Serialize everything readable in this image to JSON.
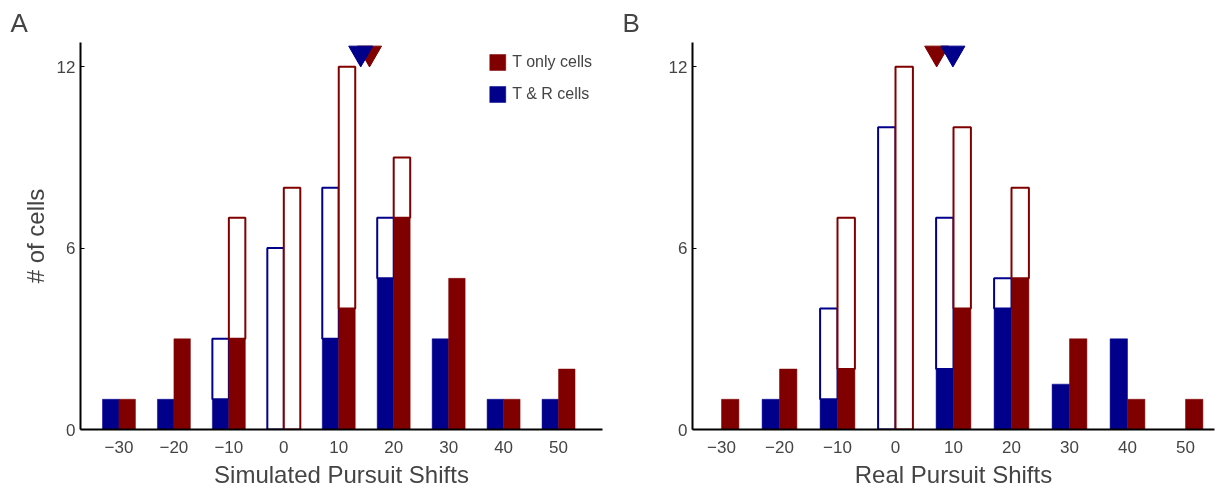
{
  "chart_data": [
    {
      "type": "bar",
      "title": "A",
      "xlabel": "Simulated Pursuit Shifts",
      "ylabel": "# of cells",
      "stacked": true,
      "xlim": [
        -37,
        58
      ],
      "xticks": [
        -30,
        -20,
        -10,
        0,
        10,
        20,
        30,
        40,
        50
      ],
      "ylim": [
        0,
        12.8
      ],
      "yticks": [
        0,
        6,
        12
      ],
      "grid": false,
      "legend": "top right",
      "x": [
        -31.5,
        -28.5,
        -21.5,
        -18.5,
        -11.5,
        -8.5,
        -1.5,
        1.5,
        8.5,
        11.5,
        18.5,
        21.5,
        28.5,
        31.5,
        38.5,
        41.5,
        48.5,
        51.5
      ],
      "series": [
        {
          "name": "T & R cells",
          "color": "#00008b",
          "values": [
            1,
            null,
            1,
            null,
            1,
            null,
            0,
            null,
            3,
            null,
            5,
            null,
            3,
            null,
            1,
            null,
            1,
            null
          ]
        },
        {
          "color": "#00008b",
          "line_style": "solid",
          "values": [
            null,
            null,
            null,
            null,
            2,
            null,
            6,
            null,
            5,
            null,
            2,
            null,
            null,
            null,
            null,
            null,
            null,
            null
          ]
        },
        {
          "name": "T only cells",
          "color": "#800000",
          "values": [
            null,
            1,
            null,
            3,
            null,
            3,
            null,
            0,
            null,
            4,
            null,
            7,
            null,
            5,
            null,
            1,
            null,
            2
          ]
        },
        {
          "color": "#800000",
          "line_style": "solid",
          "values": [
            null,
            null,
            null,
            null,
            null,
            4,
            null,
            8,
            null,
            8,
            null,
            2,
            null,
            null,
            null,
            null,
            null,
            null
          ]
        },
        {
          "type": "scatter",
          "marker": "triangle",
          "color": "#800000",
          "x": [
            15.6
          ],
          "values": [
            12.45
          ]
        },
        {
          "type": "scatter",
          "marker": "triangle",
          "color": "#00008b",
          "x": [
            14.0
          ],
          "values": [
            12.45
          ]
        }
      ]
    },
    {
      "type": "bar",
      "title": "B",
      "xlabel": "Real Pursuit Shifts",
      "stacked": true,
      "xlim": [
        -35,
        55
      ],
      "xticks": [
        -30,
        -20,
        -10,
        0,
        10,
        20,
        30,
        40,
        50
      ],
      "ylim": [
        0,
        12.8
      ],
      "yticks": [
        0,
        6,
        12
      ],
      "grid": false,
      "x": [
        -31.5,
        -28.5,
        -21.5,
        -18.5,
        -11.5,
        -8.5,
        -1.5,
        1.5,
        8.5,
        11.5,
        18.5,
        21.5,
        28.5,
        31.5,
        38.5,
        41.5,
        48.5,
        51.5
      ],
      "series": [
        {
          "color": "#00008b",
          "values": [
            0,
            null,
            1,
            null,
            1,
            null,
            0,
            null,
            2,
            null,
            4,
            null,
            1.5,
            null,
            3,
            null,
            0,
            null
          ]
        },
        {
          "color": "#00008b",
          "line_style": "solid",
          "values": [
            null,
            null,
            null,
            null,
            3,
            null,
            10,
            null,
            5,
            null,
            1,
            null,
            null,
            null,
            null,
            null,
            null,
            null
          ]
        },
        {
          "color": "#800000",
          "values": [
            null,
            1,
            null,
            2,
            null,
            2,
            null,
            0,
            null,
            4,
            null,
            5,
            null,
            3,
            null,
            1,
            null,
            1
          ]
        },
        {
          "color": "#800000",
          "line_style": "solid",
          "values": [
            null,
            null,
            null,
            null,
            null,
            5,
            null,
            12,
            null,
            6,
            null,
            3,
            null,
            null,
            null,
            null,
            null,
            null
          ]
        },
        {
          "type": "scatter",
          "marker": "triangle",
          "color": "#800000",
          "x": [
            7.1
          ],
          "values": [
            12.45
          ]
        },
        {
          "type": "scatter",
          "marker": "triangle",
          "color": "#00008b",
          "x": [
            9.9
          ],
          "values": [
            12.45
          ]
        }
      ]
    }
  ]
}
